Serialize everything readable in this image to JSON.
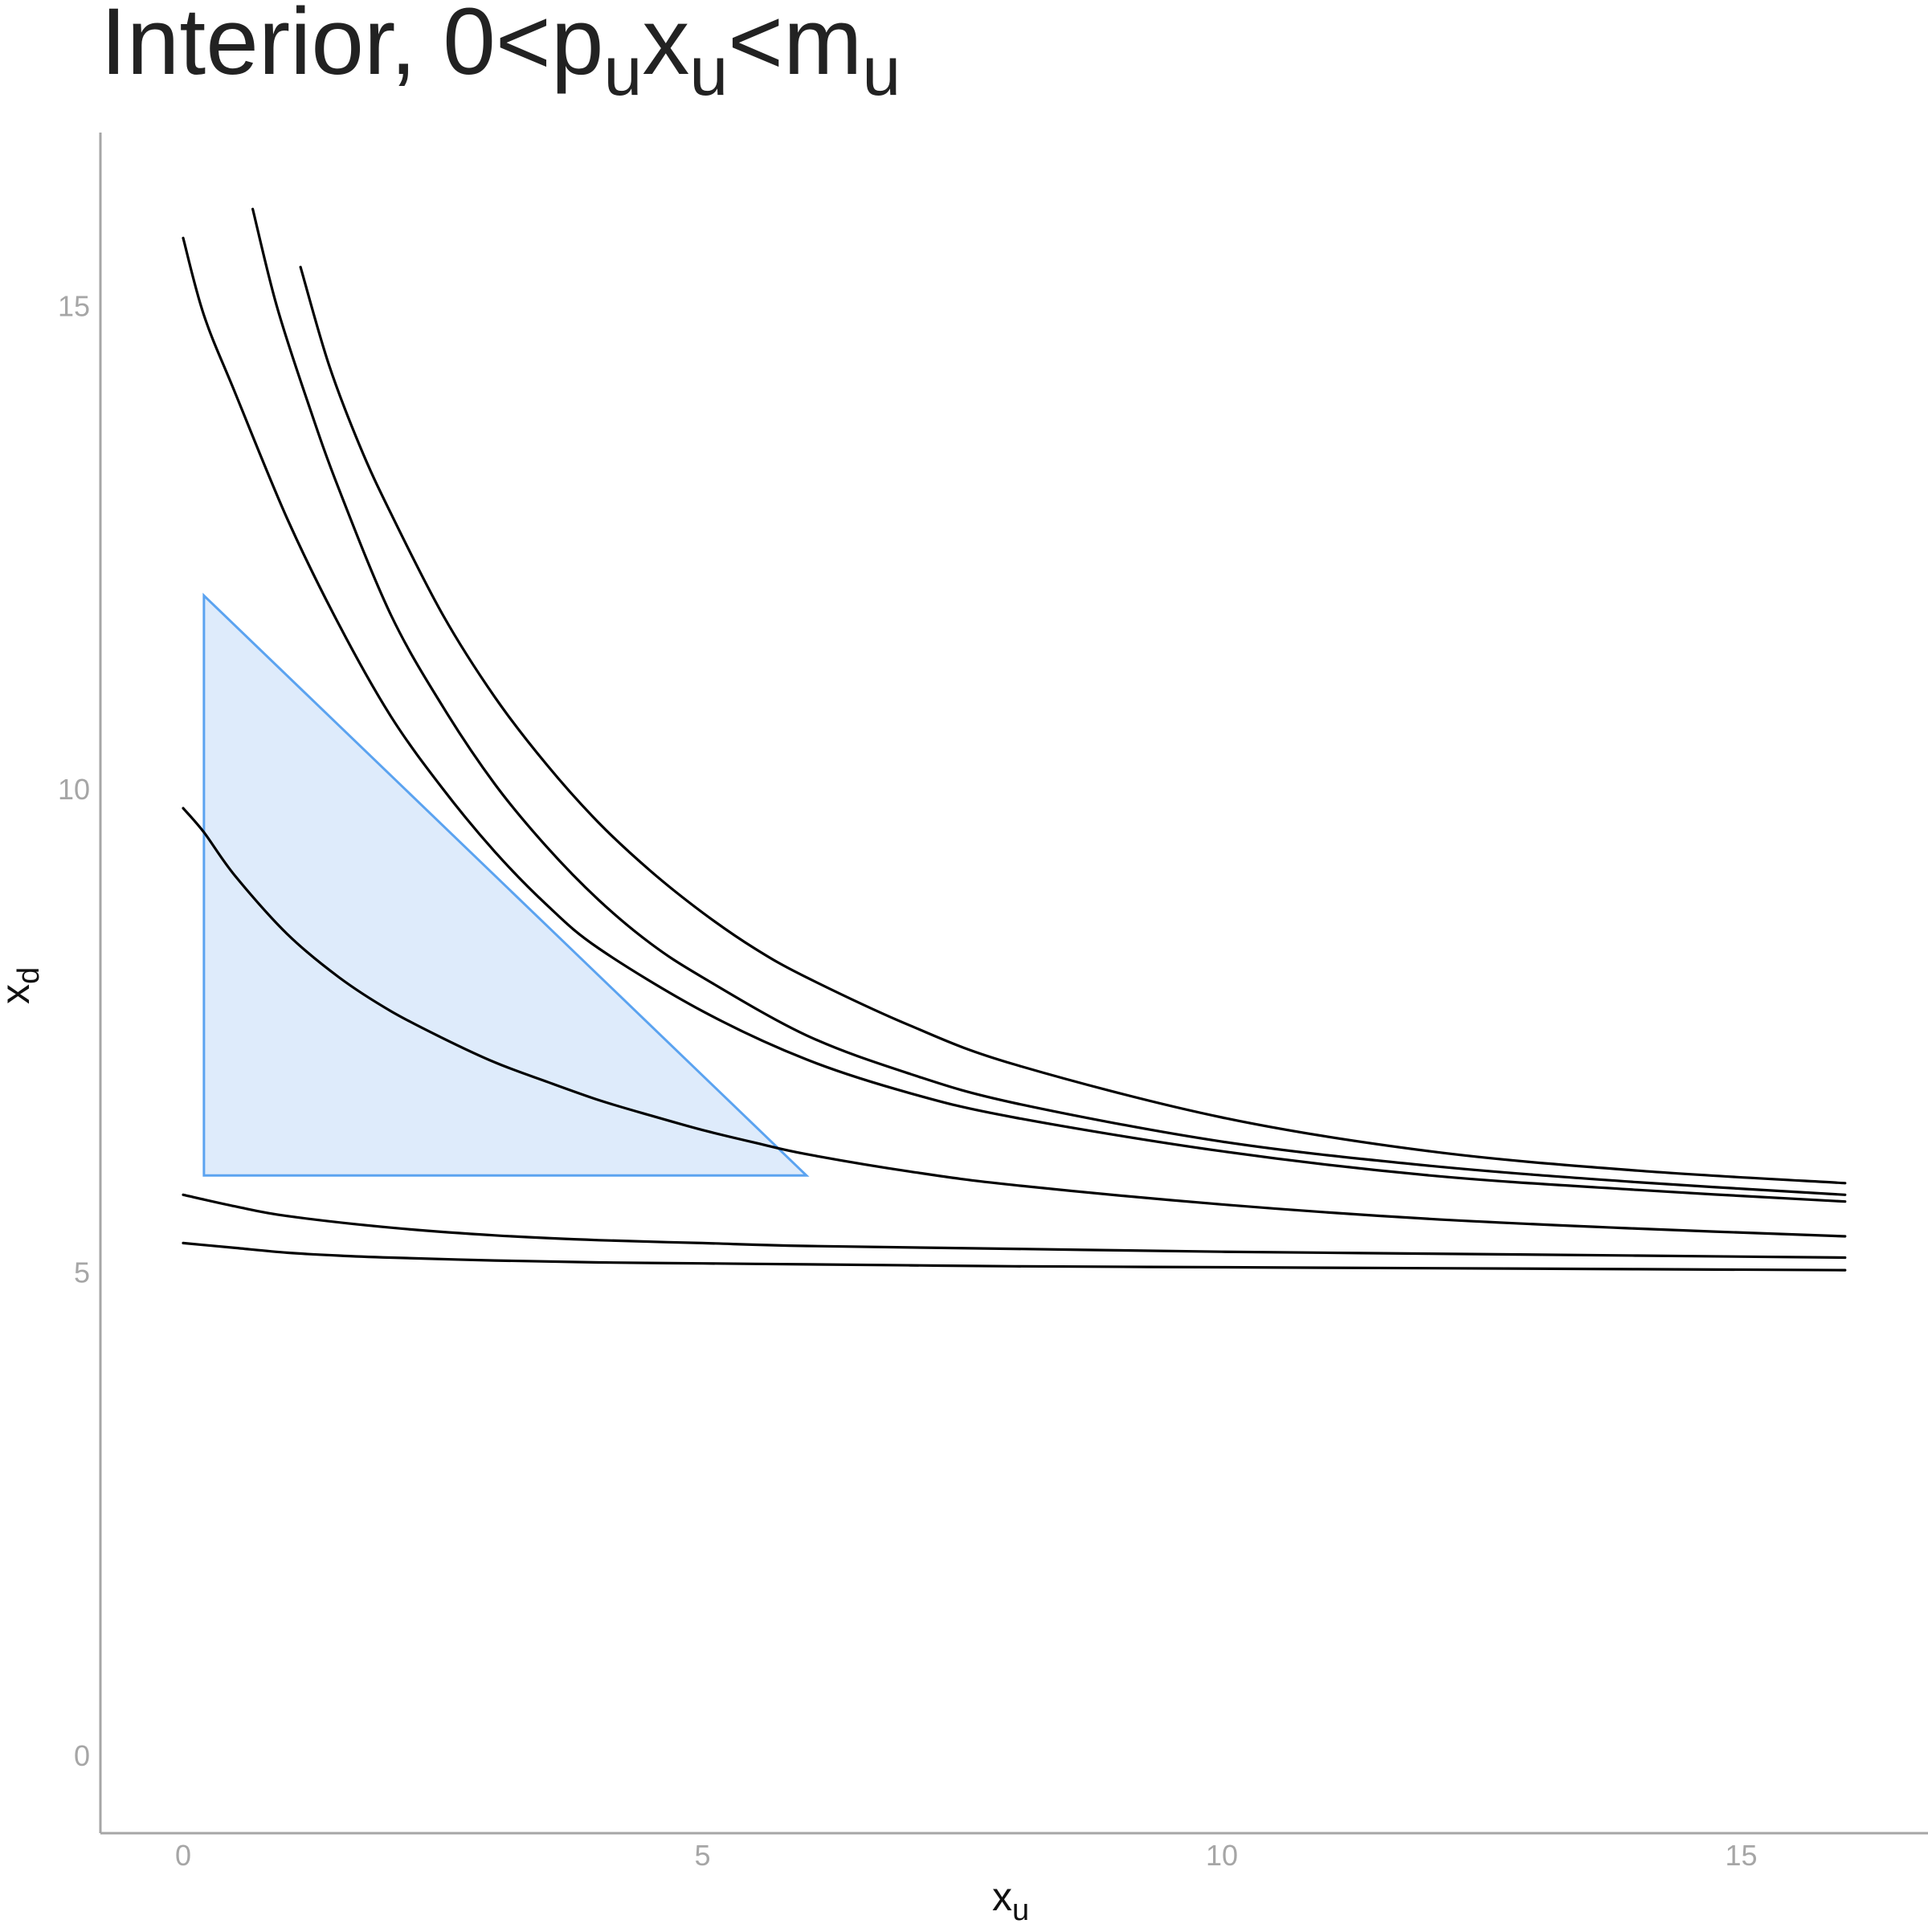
{
  "title": {
    "text": "Interior, 0<p",
    "sub1": "u",
    "mid": "x",
    "sub2": "u",
    "mid2": "<m",
    "sub3": "u"
  },
  "axes": {
    "x": {
      "label": "x",
      "label_sub": "u"
    },
    "y": {
      "label": "x",
      "label_sub": "d"
    }
  },
  "chart_data": {
    "type": "line",
    "title": "Interior, 0<p_u x_u<m_u",
    "xlabel": "x_u",
    "ylabel": "x_d",
    "xlim": [
      -0.8,
      16.8
    ],
    "ylim": [
      -0.8,
      16.8
    ],
    "x_ticks": [
      0,
      5,
      10,
      15
    ],
    "x_tick_labels": [
      "0",
      "5",
      "10",
      "15"
    ],
    "y_ticks": [
      0,
      5,
      10,
      15
    ],
    "y_tick_labels": [
      "0",
      "5",
      "10",
      "15"
    ],
    "grid": false,
    "legend": "none",
    "series": [
      {
        "x": [
          0,
          0.2,
          0.5,
          1,
          1.5,
          2,
          3,
          4,
          5,
          6,
          7,
          8,
          10,
          12,
          14,
          16
        ],
        "y": [
          5.3,
          5.28,
          5.25,
          5.2,
          5.17,
          5.15,
          5.12,
          5.1,
          5.09,
          5.08,
          5.07,
          5.06,
          5.05,
          5.04,
          5.03,
          5.02
        ]
      },
      {
        "x": [
          0,
          0.5,
          1,
          2,
          3,
          4,
          5,
          6,
          8,
          10,
          12,
          14,
          16
        ],
        "y": [
          5.8,
          5.68,
          5.58,
          5.46,
          5.38,
          5.33,
          5.3,
          5.27,
          5.24,
          5.21,
          5.19,
          5.17,
          5.15
        ]
      },
      {
        "x": [
          0,
          0.2,
          0.5,
          1,
          1.5,
          2,
          2.5,
          3,
          3.5,
          4,
          4.5,
          5,
          5.5,
          6,
          7,
          8,
          10,
          12,
          14,
          16
        ],
        "y": [
          9.8,
          9.55,
          9.1,
          8.5,
          8.05,
          7.7,
          7.42,
          7.17,
          6.97,
          6.78,
          6.62,
          6.47,
          6.34,
          6.22,
          6.04,
          5.9,
          5.7,
          5.55,
          5.45,
          5.37
        ]
      },
      {
        "x": [
          0,
          0.2,
          0.5,
          1,
          1.5,
          2,
          2.5,
          3,
          3.5,
          4,
          5,
          6,
          7,
          8,
          10,
          12,
          14,
          16
        ],
        "y": [
          15.7,
          14.9,
          14.1,
          12.8,
          11.7,
          10.75,
          10.0,
          9.35,
          8.8,
          8.35,
          7.7,
          7.2,
          6.85,
          6.6,
          6.25,
          6.0,
          5.85,
          5.73
        ]
      },
      {
        "x": [
          0.67,
          0.9,
          1.2,
          1.5,
          2,
          2.5,
          3,
          3.5,
          4,
          4.5,
          5,
          6,
          7,
          8,
          10,
          12,
          14,
          16
        ],
        "y": [
          16.0,
          15.0,
          14.0,
          13.1,
          11.8,
          10.85,
          10.05,
          9.4,
          8.85,
          8.4,
          8.05,
          7.45,
          7.05,
          6.75,
          6.35,
          6.1,
          5.93,
          5.8
        ]
      },
      {
        "x": [
          1.13,
          1.4,
          1.7,
          2,
          2.5,
          3,
          3.5,
          4,
          4.5,
          5,
          5.5,
          6,
          7,
          8,
          10,
          12,
          14,
          16
        ],
        "y": [
          15.4,
          14.4,
          13.55,
          12.85,
          11.8,
          10.95,
          10.25,
          9.65,
          9.15,
          8.72,
          8.35,
          8.05,
          7.55,
          7.15,
          6.6,
          6.25,
          6.05,
          5.92
        ]
      }
    ],
    "budget_set": {
      "x": [
        0.2,
        0.2,
        6.0
      ],
      "y": [
        12.0,
        6.0,
        6.0
      ],
      "fill": "#deebfb",
      "stroke": "#5ba3f0"
    },
    "colors": {
      "curve": "#000000",
      "axis": "#a6a6a6",
      "tick_text": "#a6a6a6",
      "budget_fill": "#deebfb",
      "budget_stroke": "#5ba3f0"
    }
  }
}
